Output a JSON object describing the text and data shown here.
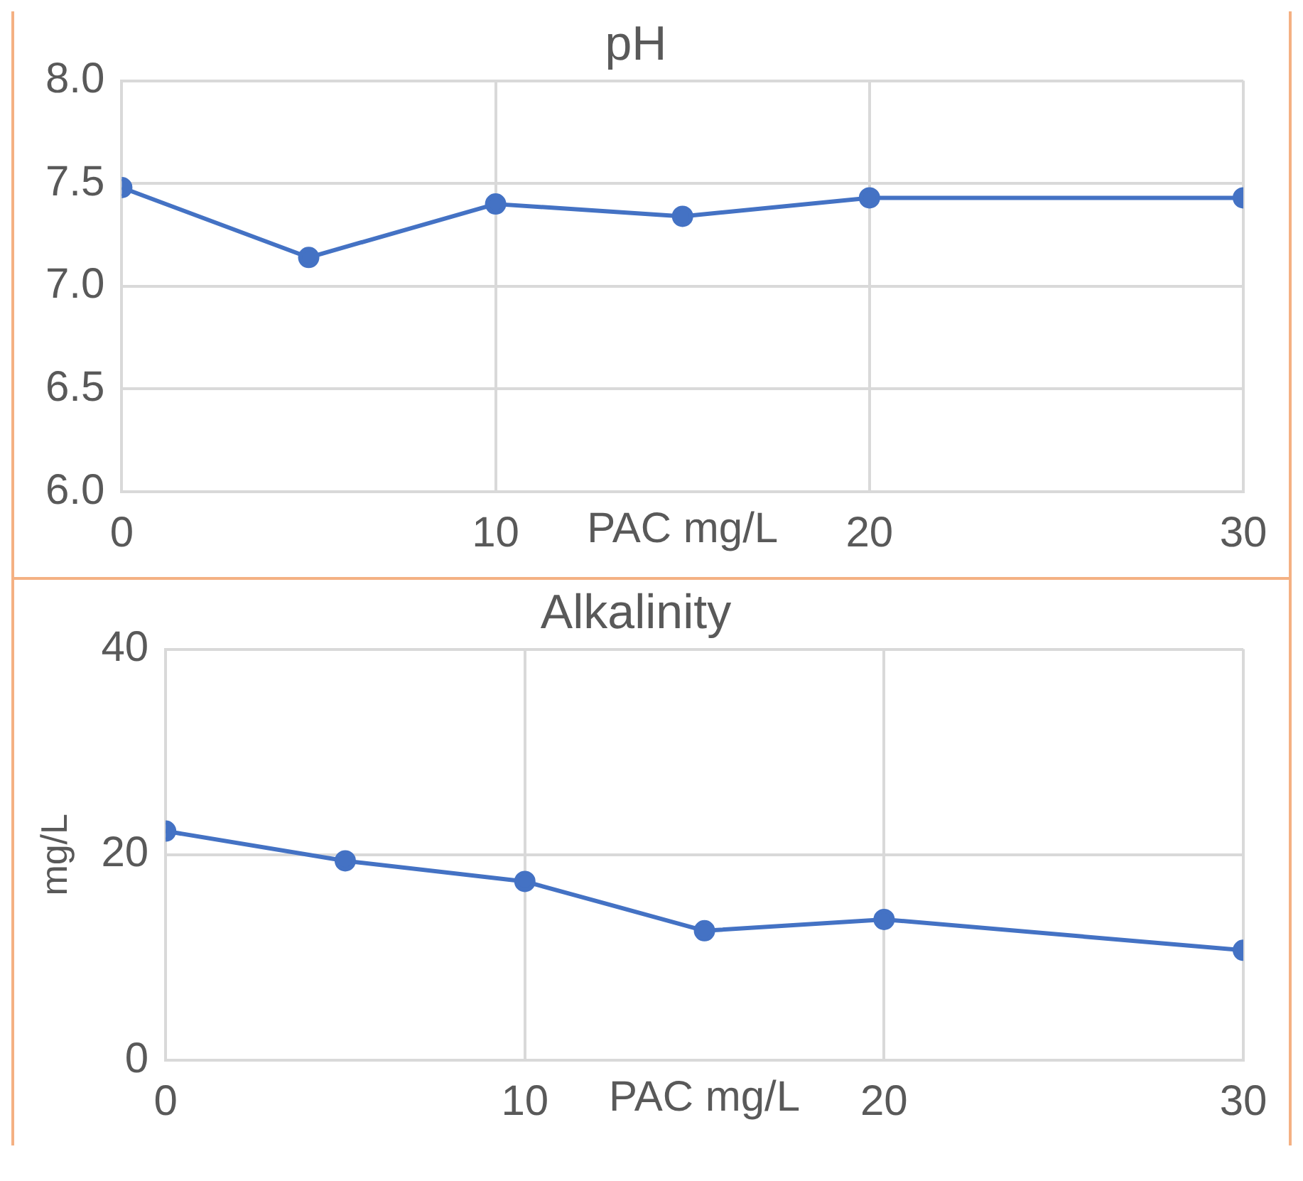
{
  "chart_data": [
    {
      "type": "line",
      "title": "pH",
      "xlabel": "PAC mg/L",
      "x": [
        0,
        5,
        10,
        15,
        20,
        30
      ],
      "series": [
        {
          "color": "#4472c4",
          "values": [
            7.48,
            7.14,
            7.4,
            7.34,
            7.43,
            7.43
          ]
        }
      ],
      "xlim": [
        0,
        30
      ],
      "xticks": [
        0,
        10,
        20,
        30
      ],
      "ylim": [
        6,
        8
      ],
      "yticks": [
        {
          "value": 6,
          "label": "6.0"
        },
        {
          "value": 6.5,
          "label": "6.5"
        },
        {
          "value": 7,
          "label": "7.0"
        },
        {
          "value": 7.5,
          "label": "7.5"
        },
        {
          "value": 8,
          "label": "8.0"
        }
      ],
      "grid": true,
      "marker": "circle",
      "line_style": "solid",
      "legend": false
    },
    {
      "type": "line",
      "title": "Alkalinity",
      "xlabel": "PAC mg/L",
      "ylabel": "mg/L",
      "x": [
        0,
        5,
        10,
        15,
        20,
        30
      ],
      "series": [
        {
          "color": "#4472c4",
          "values": [
            22.3,
            19.4,
            17.4,
            12.6,
            13.7,
            10.7
          ]
        }
      ],
      "xlim": [
        0,
        30
      ],
      "xticks": [
        0,
        10,
        20,
        30
      ],
      "ylim": [
        0,
        40
      ],
      "yticks": [
        0,
        20,
        40
      ],
      "grid": true,
      "marker": "circle",
      "line_style": "solid",
      "legend": false
    }
  ]
}
